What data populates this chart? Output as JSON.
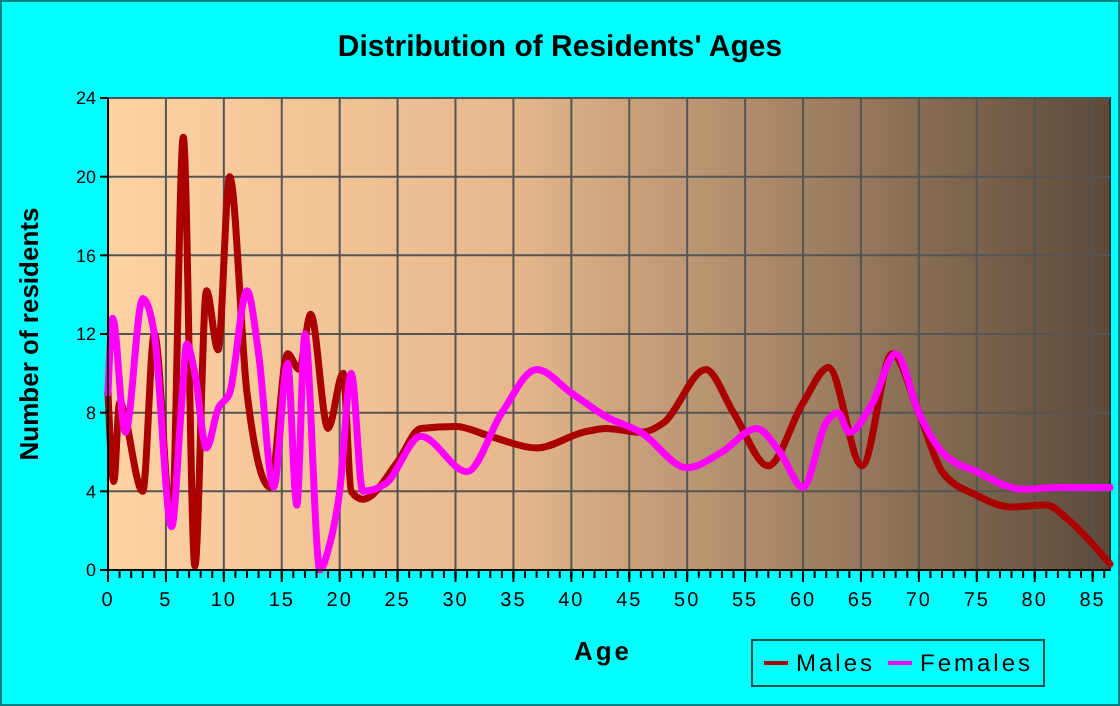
{
  "chart_data": {
    "type": "line",
    "title": "Distribution of Residents' Ages",
    "xlabel": "Age",
    "ylabel": "Number of residents",
    "xlim": [
      0,
      86.5
    ],
    "xticks": [
      0,
      5,
      10,
      15,
      20,
      25,
      30,
      35,
      40,
      45,
      50,
      55,
      60,
      65,
      70,
      75,
      80,
      85
    ],
    "ylim": [
      0,
      24
    ],
    "yticks": [
      0,
      4,
      8,
      12,
      16,
      20,
      24
    ],
    "grid": true,
    "legend": "bottom right",
    "series": [
      {
        "name": "Males",
        "color": "#aa0000",
        "x": [
          0,
          0.5,
          1,
          3,
          4,
          5.5,
          6.5,
          7.5,
          8.5,
          9.5,
          10.5,
          12,
          14,
          15.5,
          16.5,
          17.5,
          19,
          20.3,
          21,
          22,
          25,
          27,
          30,
          33,
          37,
          41,
          43,
          46,
          48,
          51.6,
          54,
          57,
          60,
          62.2,
          65.1,
          67.7,
          70,
          72,
          75,
          78,
          81,
          83,
          86.5
        ],
        "values": [
          9,
          4.5,
          8.5,
          4,
          12,
          2.3,
          22,
          0.2,
          14.2,
          11.2,
          20,
          9,
          4.2,
          11,
          10.2,
          13,
          7.2,
          10,
          4,
          3.6,
          5.5,
          7.2,
          7.3,
          6.8,
          6.2,
          7,
          7.2,
          7,
          7.5,
          10.2,
          8,
          5.3,
          8.5,
          10.3,
          5.3,
          11,
          8,
          5,
          3.8,
          3.2,
          3.3,
          2.5,
          0.3
        ]
      },
      {
        "name": "Females",
        "color": "#ff00ff",
        "x": [
          0,
          0.4,
          1.5,
          3,
          4,
          5.5,
          6.3,
          6.8,
          7.5,
          8.5,
          9.5,
          10.5,
          12,
          13,
          14.3,
          15.5,
          16.3,
          17,
          18.3,
          19,
          20,
          21,
          22,
          24,
          27,
          31,
          34,
          37,
          40,
          43,
          46,
          50,
          53,
          56,
          58,
          60,
          62,
          63,
          64,
          66,
          68,
          70,
          72,
          75,
          79,
          82,
          86.5
        ],
        "values": [
          9,
          12.8,
          7,
          13.8,
          12,
          2.2,
          8,
          11.5,
          10,
          6.2,
          8.2,
          9,
          14.2,
          11,
          4.2,
          10.5,
          3.3,
          12,
          0,
          1,
          4,
          10,
          4,
          4.4,
          6.8,
          5,
          8,
          10.2,
          9,
          7.8,
          7,
          5.2,
          6,
          7.2,
          6,
          4.2,
          7.5,
          8,
          7,
          8.5,
          11,
          8,
          6,
          5,
          4.1,
          4.2,
          4.2
        ]
      }
    ]
  }
}
